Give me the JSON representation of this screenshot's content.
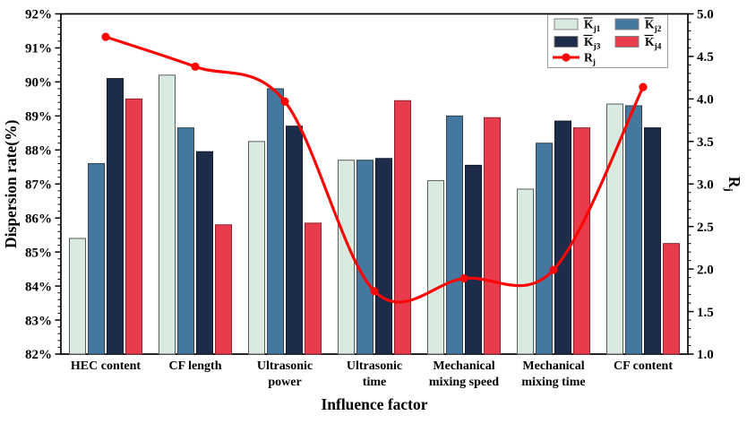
{
  "chart_data": {
    "type": "bar",
    "title": "",
    "xlabel": "Influence factor",
    "ylabel_left": "Dispersion rate(%)",
    "ylabel_right": {
      "base": "R",
      "sub": "j"
    },
    "categories": [
      "HEC content",
      "CF length",
      "Ultrasonic\npower",
      "Ultrasonic\ntime",
      "Mechanical\nmixing speed",
      "Mechanical\nmixing time",
      "CF content"
    ],
    "series": [
      {
        "id": "kj1",
        "label": "K̄j1",
        "label_base": "K",
        "overline": true,
        "sub": "j1",
        "type": "bar",
        "color": "#d9ebe1",
        "border": "#5a5f5c",
        "values": [
          85.4,
          90.2,
          88.25,
          87.7,
          87.1,
          86.85,
          89.35
        ]
      },
      {
        "id": "kj2",
        "label": "K̄j2",
        "label_base": "K",
        "overline": true,
        "sub": "j2",
        "type": "bar",
        "color": "#45789e",
        "border": "#33434f",
        "values": [
          87.6,
          88.65,
          89.8,
          87.7,
          89.0,
          88.2,
          89.3
        ]
      },
      {
        "id": "kj3",
        "label": "K̄j3",
        "label_base": "K",
        "overline": true,
        "sub": "j3",
        "type": "bar",
        "color": "#1d2c4a",
        "border": "#10192b",
        "values": [
          90.1,
          87.95,
          88.7,
          87.75,
          87.55,
          88.85,
          88.65
        ]
      },
      {
        "id": "kj4",
        "label": "K̄j4",
        "label_base": "K",
        "overline": true,
        "sub": "j4",
        "type": "bar",
        "color": "#e83c4d",
        "border": "#8e2430",
        "values": [
          89.5,
          85.8,
          85.85,
          89.45,
          88.95,
          88.65,
          85.25
        ]
      },
      {
        "id": "rj",
        "label": "Rj",
        "label_base": "R",
        "overline": false,
        "sub": "j",
        "type": "line",
        "axis": "right",
        "color": "#fb0505",
        "values": [
          4.73,
          4.38,
          3.97,
          1.74,
          1.89,
          1.99,
          4.14
        ]
      }
    ],
    "left_axis": {
      "min": 82,
      "max": 92,
      "major_step": 1,
      "minor_step": 0.2,
      "ticks": [
        "82%",
        "83%",
        "84%",
        "85%",
        "86%",
        "87%",
        "88%",
        "89%",
        "90%",
        "91%",
        "92%"
      ]
    },
    "right_axis": {
      "min": 1.0,
      "max": 5.0,
      "major_step": 0.5,
      "minor_step": 0.1,
      "ticks": [
        "1.0",
        "1.5",
        "2.0",
        "2.5",
        "3.0",
        "3.5",
        "4.0",
        "4.5",
        "5.0"
      ]
    },
    "legend_position": "top-right",
    "grid": false
  }
}
